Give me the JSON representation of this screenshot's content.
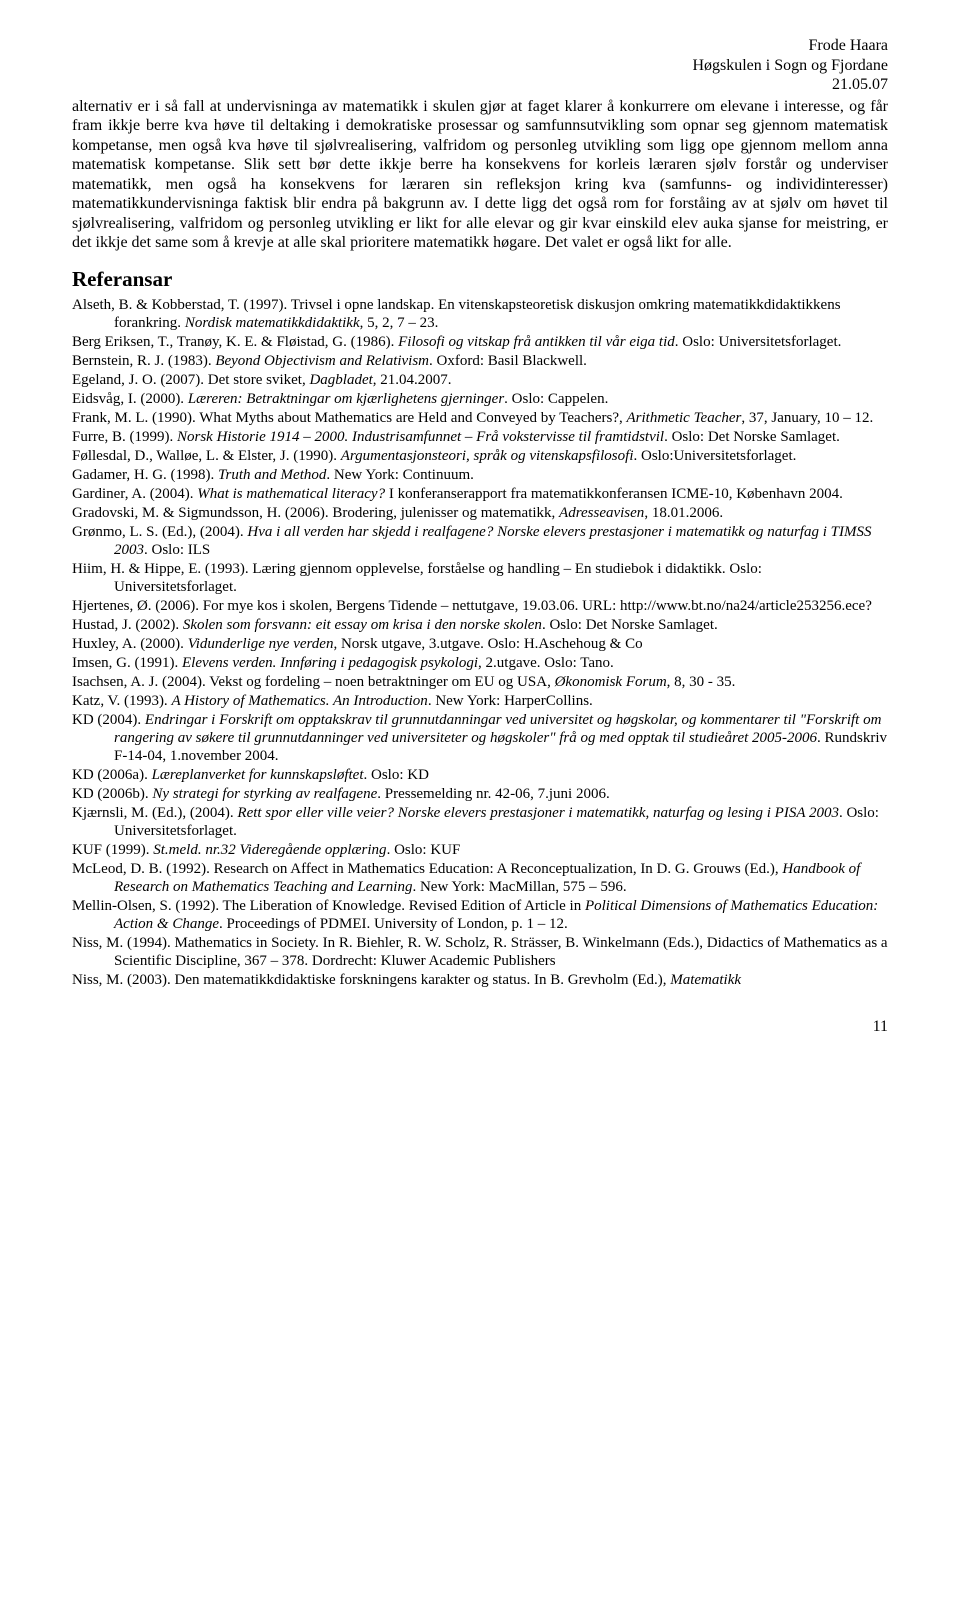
{
  "header": {
    "author": "Frode Haara",
    "institution": "Høgskulen i Sogn og Fjordane",
    "date": "21.05.07"
  },
  "body_paragraph": "alternativ er i så fall at undervisninga av matematikk i skulen gjør at faget klarer å konkurrere om elevane i interesse, og får fram ikkje berre kva høve til deltaking i demokratiske prosessar og samfunnsutvikling som opnar seg gjennom matematisk kompetanse, men også kva høve til sjølvrealisering, valfridom og personleg utvikling som ligg ope gjennom mellom anna matematisk kompetanse. Slik sett bør dette ikkje berre ha konsekvens for korleis læraren sjølv forstår og underviser matematikk, men også ha konsekvens for læraren sin refleksjon kring kva (samfunns- og individinteresser) matematikkundervisninga faktisk blir endra på bakgrunn av. I dette ligg det også rom for forståing av at sjølv om høvet til sjølvrealisering, valfridom og personleg utvikling er likt for alle elevar og gir kvar einskild elev auka sjanse for meistring, er det ikkje det same som å krevje at alle skal prioritere matematikk høgare. Det valet er også likt for alle.",
  "references_heading": "Referansar",
  "references": [
    {
      "html": "Alseth, B. & Kobberstad, T. (1997). Trivsel i opne landskap. En vitenskapsteoretisk diskusjon omkring matematikkdidaktikkens forankring. <i>Nordisk matematikkdidaktikk</i>, 5, 2, 7 – 23."
    },
    {
      "html": "Berg Eriksen, T., Tranøy, K. E. & Fløistad, G. (1986). <i>Filosofi og vitskap frå antikken til vår eiga tid</i>. Oslo: Universitetsforlaget."
    },
    {
      "html": "Bernstein, R. J. (1983). <i>Beyond Objectivism and Relativism</i>. Oxford: Basil Blackwell."
    },
    {
      "html": "Egeland, J. O. (2007). Det store sviket, <i>Dagbladet</i>, 21.04.2007."
    },
    {
      "html": "Eidsvåg, I. (2000). <i>Læreren: Betraktningar om kjærlighetens gjerninger</i>. Oslo: Cappelen."
    },
    {
      "html": "Frank, M. L. (1990). What Myths about Mathematics are Held and Conveyed by Teachers?, <i>Arithmetic Teacher</i>, 37, January, 10 – 12."
    },
    {
      "html": "Furre, B. (1999). <i>Norsk Historie 1914 – 2000. Industrisamfunnet – Frå vokstervisse til framtidstvil</i>. Oslo: Det Norske Samlaget."
    },
    {
      "html": "Føllesdal, D., Walløe, L. & Elster, J. (1990). <i>Argumentasjonsteori, språk og vitenskapsfilosofi</i>. Oslo:Universitetsforlaget."
    },
    {
      "html": "Gadamer, H. G. (1998). <i>Truth and Method</i>. New York: Continuum."
    },
    {
      "html": "Gardiner, A. (2004). <i>What is mathematical literacy?</i> I konferanserapport fra matematikkonferansen ICME-10, København 2004."
    },
    {
      "html": "Gradovski, M. & Sigmundsson, H. (2006). Brodering, julenisser og matematikk, <i>Adresseavisen</i>, 18.01.2006."
    },
    {
      "html": "Grønmo, L. S. (Ed.), (2004). <i>Hva i all verden har skjedd i realfagene? Norske elevers prestasjoner i matematikk og naturfag i TIMSS 2003</i>. Oslo: ILS"
    },
    {
      "html": "Hiim, H. & Hippe, E. (1993). Læring gjennom opplevelse, forståelse og handling – En studiebok i didaktikk. Oslo: Universitetsforlaget."
    },
    {
      "html": "Hjertenes, Ø. (2006). For mye kos i skolen, Bergens Tidende – nettutgave, 19.03.06. URL: http://www.bt.no/na24/article253256.ece?"
    },
    {
      "html": "Hustad, J. (2002). <i>Skolen som forsvann: eit essay om krisa i den norske skolen</i>. Oslo: Det Norske Samlaget."
    },
    {
      "html": "Huxley, A. (2000). <i>Vidunderlige nye verden</i>, Norsk utgave, 3.utgave. Oslo: H.Aschehoug & Co"
    },
    {
      "html": "Imsen, G. (1991). <i>Elevens verden. Innføring i pedagogisk psykologi</i>, 2.utgave. Oslo: Tano."
    },
    {
      "html": "Isachsen, A. J. (2004). Vekst og fordeling – noen betraktninger om EU og USA, <i>Økonomisk Forum</i>, 8, 30 - 35."
    },
    {
      "html": "Katz, V. (1993). <i>A History of Mathematics. An Introduction</i>. New York: HarperCollins."
    },
    {
      "html": "KD (2004). <i>Endringar i Forskrift om opptakskrav til grunnutdanningar ved universitet og høgskolar, og kommentarer til \"Forskrift om rangering av søkere til grunnutdanninger ved universiteter og høgskoler\" frå og med opptak til studieåret 2005-2006</i>. Rundskriv F-14-04, 1.november 2004."
    },
    {
      "html": "KD (2006a). <i>Læreplanverket for kunnskapsløftet</i>. Oslo: KD"
    },
    {
      "html": "KD (2006b). <i>Ny strategi for styrking av realfagene</i>. Pressemelding nr. 42-06, 7.juni 2006."
    },
    {
      "html": "Kjærnsli, M. (Ed.), (2004). <i>Rett spor eller ville veier? Norske elevers prestasjoner i matematikk, naturfag og lesing i PISA 2003</i>. Oslo: Universitetsforlaget."
    },
    {
      "html": "KUF (1999). <i>St.meld. nr.32 Videregående opplæring</i>. Oslo: KUF"
    },
    {
      "html": "McLeod, D. B. (1992). Research on Affect in Mathematics Education: A Reconceptualization, In D. G. Grouws (Ed.), <i>Handbook of Research on Mathematics Teaching and Learning</i>. New York: MacMillan, 575 – 596."
    },
    {
      "html": "Mellin-Olsen, S. (1992). The Liberation of Knowledge. Revised Edition of Article in <i>Political Dimensions of Mathematics Education: Action & Change</i>. Proceedings of PDMEI. University of London, p. 1 – 12."
    },
    {
      "html": "Niss, M. (1994). Mathematics in Society. In R. Biehler, R. W. Scholz, R. Strässer, B. Winkelmann (Eds.), Didactics of Mathematics as a Scientific Discipline, 367 – 378. Dordrecht: Kluwer Academic Publishers"
    },
    {
      "html": "Niss, M. (2003). Den matematikkdidaktiske forskningens karakter og status. In B. Grevholm (Ed.), <i>Matematikk</i>"
    }
  ],
  "page_number": "11"
}
